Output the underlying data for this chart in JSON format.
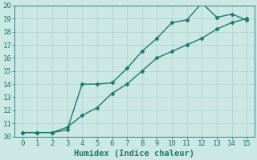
{
  "line1_x": [
    0,
    1,
    2,
    3,
    4,
    5,
    6,
    7,
    8,
    9,
    10,
    11,
    12,
    13,
    14,
    15
  ],
  "line1_y": [
    10.3,
    10.3,
    10.3,
    10.5,
    14.0,
    14.0,
    14.1,
    15.2,
    16.5,
    17.5,
    18.7,
    18.9,
    20.2,
    19.1,
    19.35,
    18.9
  ],
  "line2_x": [
    0,
    1,
    2,
    3,
    4,
    5,
    6,
    7,
    8,
    9,
    10,
    11,
    12,
    13,
    14,
    15
  ],
  "line2_y": [
    10.3,
    10.3,
    10.3,
    10.7,
    11.6,
    12.2,
    13.3,
    14.0,
    15.0,
    16.0,
    16.5,
    17.0,
    17.5,
    18.2,
    18.7,
    19.0
  ],
  "color": "#1a7a6e",
  "bg_color": "#cce8e4",
  "grid_color": "#b0d5d0",
  "xlabel": "Humidex (Indice chaleur)",
  "xlim": [
    -0.5,
    15.5
  ],
  "ylim": [
    10,
    20
  ],
  "xticks": [
    0,
    1,
    2,
    3,
    4,
    5,
    6,
    7,
    8,
    9,
    10,
    11,
    12,
    13,
    14,
    15
  ],
  "yticks": [
    10,
    11,
    12,
    13,
    14,
    15,
    16,
    17,
    18,
    19,
    20
  ],
  "marker": "D",
  "markersize": 2.5,
  "linewidth": 1.0,
  "tick_fontsize": 6.5,
  "xlabel_fontsize": 7.5
}
